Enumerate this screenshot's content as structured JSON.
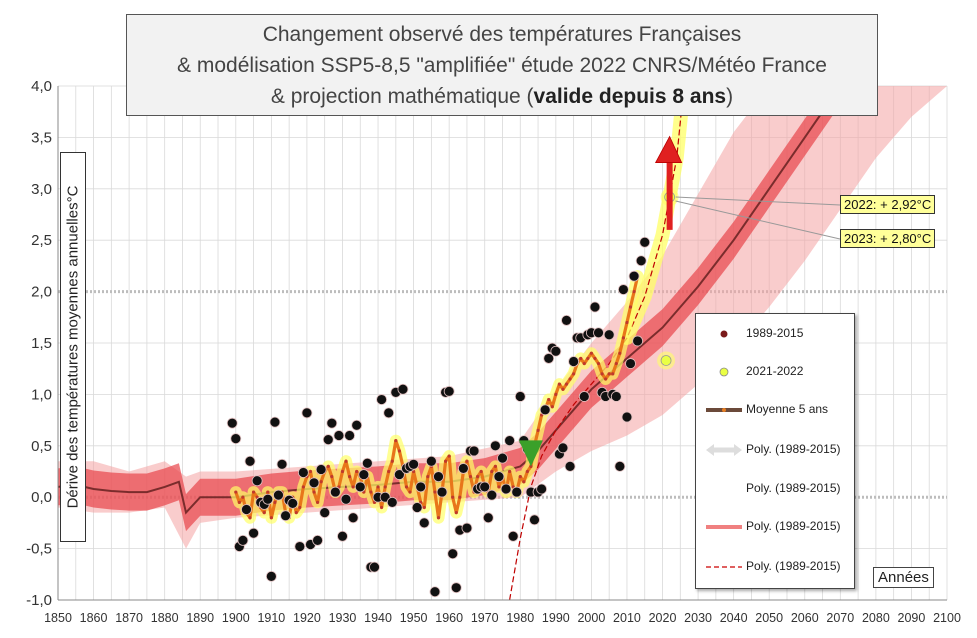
{
  "title": {
    "line1": "Changement observé des températures Françaises",
    "line2": "& modélisation SSP5-8,5 \"amplifiée\" étude 2022 CNRS/Météo France",
    "line3_prefix": "& projection mathématique (",
    "line3_bold": "valide depuis 8 ans",
    "line3_suffix": ")"
  },
  "ylabel": "Dérive des températures moyennes annuelles°C",
  "xlabel": "Années",
  "annotations": {
    "c2022": "2022: + 2,92°C",
    "c2023": "2023: + 2,80°C"
  },
  "legend": {
    "items": [
      {
        "label": "1989-2015",
        "symbol": "dot-darkred"
      },
      {
        "label": "2021-2022",
        "symbol": "dot-yellow"
      },
      {
        "label": "Moyenne 5 ans",
        "symbol": "line-brown-dots"
      },
      {
        "label": "Poly. (1989-2015)",
        "symbol": "arrow-grey"
      },
      {
        "label": "Poly. (1989-2015)",
        "symbol": "none"
      },
      {
        "label": "Poly. (1989-2015)",
        "symbol": "line-salmon"
      },
      {
        "label": "Poly. (1989-2015)",
        "symbol": "line-dashed-red"
      }
    ]
  },
  "colors": {
    "band": "#f4a3a3",
    "band_core": "#e8454a",
    "model_line": "#7a2c2c",
    "highlight": "#ffff66",
    "moving_avg": "#e67e22",
    "dot": "#111111",
    "arrow_red": "#e02020",
    "arrow_green": "#3aa02a",
    "callout_bg": "#ffff99"
  },
  "chart_data": {
    "type": "scatter",
    "x_ticks": [
      "1850",
      "1860",
      "1870",
      "1880",
      "1890",
      "1900",
      "1910",
      "1920",
      "1930",
      "1940",
      "1950",
      "1960",
      "1970",
      "1980",
      "1990",
      "2000",
      "2010",
      "2020",
      "2030",
      "2040",
      "2050",
      "2060",
      "2070",
      "2080",
      "2090",
      "2100"
    ],
    "y_ticks": [
      "4,0",
      "3,5",
      "3,0",
      "2,5",
      "2,0",
      "1,5",
      "1,0",
      "0,5",
      "0,0",
      "-0,5",
      "-1,0"
    ],
    "xlim": [
      1850,
      2100
    ],
    "ylim": [
      -1.0,
      4.0
    ],
    "grid": true,
    "legend_position": "right",
    "observed_points": [
      [
        1899,
        0.72
      ],
      [
        1900,
        0.57
      ],
      [
        1901,
        -0.48
      ],
      [
        1902,
        -0.42
      ],
      [
        1903,
        -0.12
      ],
      [
        1904,
        0.35
      ],
      [
        1905,
        -0.35
      ],
      [
        1906,
        0.16
      ],
      [
        1907,
        -0.05
      ],
      [
        1908,
        -0.07
      ],
      [
        1909,
        -0.02
      ],
      [
        1910,
        -0.77
      ],
      [
        1911,
        0.73
      ],
      [
        1912,
        0.02
      ],
      [
        1913,
        0.32
      ],
      [
        1914,
        -0.18
      ],
      [
        1915,
        -0.03
      ],
      [
        1916,
        -0.06
      ],
      [
        1917,
        -1.02
      ],
      [
        1918,
        -0.48
      ],
      [
        1919,
        0.24
      ],
      [
        1920,
        0.82
      ],
      [
        1921,
        -0.46
      ],
      [
        1922,
        0.14
      ],
      [
        1923,
        -0.42
      ],
      [
        1924,
        0.27
      ],
      [
        1925,
        -0.15
      ],
      [
        1926,
        0.56
      ],
      [
        1927,
        0.72
      ],
      [
        1928,
        0.05
      ],
      [
        1929,
        0.6
      ],
      [
        1930,
        -0.38
      ],
      [
        1931,
        -0.02
      ],
      [
        1932,
        0.6
      ],
      [
        1933,
        -0.2
      ],
      [
        1934,
        0.7
      ],
      [
        1935,
        0.1
      ],
      [
        1936,
        0.22
      ],
      [
        1937,
        0.33
      ],
      [
        1938,
        -0.68
      ],
      [
        1939,
        -0.68
      ],
      [
        1940,
        0.0
      ],
      [
        1941,
        0.95
      ],
      [
        1942,
        0.0
      ],
      [
        1943,
        0.82
      ],
      [
        1944,
        -0.05
      ],
      [
        1945,
        1.02
      ],
      [
        1946,
        0.22
      ],
      [
        1947,
        1.05
      ],
      [
        1948,
        0.28
      ],
      [
        1949,
        0.3
      ],
      [
        1950,
        0.32
      ],
      [
        1951,
        -0.1
      ],
      [
        1952,
        0.1
      ],
      [
        1953,
        -0.25
      ],
      [
        1954,
        -1.02
      ],
      [
        1955,
        0.35
      ],
      [
        1956,
        -0.92
      ],
      [
        1957,
        0.2
      ],
      [
        1958,
        0.05
      ],
      [
        1959,
        1.02
      ],
      [
        1960,
        1.03
      ],
      [
        1961,
        -0.55
      ],
      [
        1962,
        -0.88
      ],
      [
        1963,
        -0.32
      ],
      [
        1964,
        0.28
      ],
      [
        1965,
        -0.3
      ],
      [
        1966,
        0.45
      ],
      [
        1967,
        0.45
      ],
      [
        1968,
        0.08
      ],
      [
        1969,
        0.1
      ],
      [
        1970,
        0.1
      ],
      [
        1971,
        -0.2
      ],
      [
        1972,
        0.02
      ],
      [
        1973,
        0.5
      ],
      [
        1974,
        0.2
      ],
      [
        1975,
        0.38
      ],
      [
        1976,
        0.08
      ],
      [
        1977,
        0.55
      ],
      [
        1978,
        -0.38
      ],
      [
        1979,
        0.05
      ],
      [
        1980,
        0.98
      ],
      [
        1981,
        0.55
      ],
      [
        1982,
        0.47
      ],
      [
        1983,
        0.05
      ],
      [
        1984,
        -0.22
      ],
      [
        1985,
        0.05
      ],
      [
        1986,
        0.08
      ],
      [
        1987,
        0.85
      ],
      [
        1988,
        1.35
      ],
      [
        1989,
        1.45
      ],
      [
        1990,
        1.42
      ],
      [
        1991,
        0.42
      ],
      [
        1992,
        0.48
      ],
      [
        1993,
        1.72
      ],
      [
        1994,
        0.3
      ],
      [
        1995,
        1.32
      ],
      [
        1996,
        1.55
      ],
      [
        1997,
        1.55
      ],
      [
        1998,
        0.98
      ],
      [
        1999,
        1.58
      ],
      [
        2000,
        1.6
      ],
      [
        2001,
        1.85
      ],
      [
        2002,
        1.6
      ],
      [
        2003,
        1.02
      ],
      [
        2004,
        0.98
      ],
      [
        2005,
        1.58
      ],
      [
        2006,
        1.0
      ],
      [
        2007,
        0.98
      ],
      [
        2008,
        0.3
      ],
      [
        2009,
        2.02
      ],
      [
        2010,
        0.78
      ],
      [
        2011,
        1.3
      ],
      [
        2012,
        2.15
      ],
      [
        2013,
        1.52
      ],
      [
        2014,
        2.3
      ],
      [
        2015,
        2.48
      ]
    ],
    "points_2021_2022": [
      [
        2021,
        1.33
      ],
      [
        2022,
        2.92
      ]
    ],
    "moving_average_5y": [
      [
        1900,
        0.05
      ],
      [
        1901,
        -0.05
      ],
      [
        1902,
        0.0
      ],
      [
        1903,
        -0.15
      ],
      [
        1904,
        -0.2
      ],
      [
        1905,
        0.05
      ],
      [
        1906,
        0.0
      ],
      [
        1907,
        -0.1
      ],
      [
        1908,
        -0.15
      ],
      [
        1909,
        0.05
      ],
      [
        1910,
        -0.2
      ],
      [
        1911,
        -0.05
      ],
      [
        1912,
        0.05
      ],
      [
        1913,
        0.05
      ],
      [
        1914,
        -0.15
      ],
      [
        1915,
        -0.2
      ],
      [
        1916,
        0.0
      ],
      [
        1917,
        -0.15
      ],
      [
        1918,
        -0.1
      ],
      [
        1919,
        0.1
      ],
      [
        1920,
        0.2
      ],
      [
        1921,
        0.25
      ],
      [
        1922,
        0.05
      ],
      [
        1923,
        -0.05
      ],
      [
        1924,
        0.15
      ],
      [
        1925,
        0.25
      ],
      [
        1926,
        0.3
      ],
      [
        1927,
        0.2
      ],
      [
        1928,
        0.05
      ],
      [
        1929,
        0.1
      ],
      [
        1930,
        0.25
      ],
      [
        1931,
        0.35
      ],
      [
        1932,
        0.2
      ],
      [
        1933,
        0.1
      ],
      [
        1934,
        0.25
      ],
      [
        1935,
        0.2
      ],
      [
        1936,
        0.05
      ],
      [
        1937,
        0.2
      ],
      [
        1938,
        0.05
      ],
      [
        1939,
        -0.05
      ],
      [
        1940,
        0.1
      ],
      [
        1941,
        -0.1
      ],
      [
        1942,
        0.1
      ],
      [
        1943,
        0.25
      ],
      [
        1944,
        0.35
      ],
      [
        1945,
        0.55
      ],
      [
        1946,
        0.45
      ],
      [
        1947,
        0.3
      ],
      [
        1948,
        0.1
      ],
      [
        1949,
        0.05
      ],
      [
        1950,
        0.25
      ],
      [
        1951,
        0.1
      ],
      [
        1952,
        -0.05
      ],
      [
        1953,
        -0.1
      ],
      [
        1954,
        0.2
      ],
      [
        1955,
        0.3
      ],
      [
        1956,
        0.05
      ],
      [
        1957,
        -0.2
      ],
      [
        1958,
        0.05
      ],
      [
        1959,
        0.35
      ],
      [
        1960,
        0.4
      ],
      [
        1961,
        0.0
      ],
      [
        1962,
        -0.15
      ],
      [
        1963,
        0.0
      ],
      [
        1964,
        0.25
      ],
      [
        1965,
        0.35
      ],
      [
        1966,
        0.2
      ],
      [
        1967,
        0.05
      ],
      [
        1968,
        0.2
      ],
      [
        1969,
        0.25
      ],
      [
        1970,
        0.1
      ],
      [
        1971,
        0.05
      ],
      [
        1972,
        0.25
      ],
      [
        1973,
        0.3
      ],
      [
        1974,
        0.1
      ],
      [
        1975,
        0.2
      ],
      [
        1976,
        0.05
      ],
      [
        1977,
        0.25
      ],
      [
        1978,
        0.1
      ],
      [
        1979,
        0.05
      ],
      [
        1980,
        0.2
      ],
      [
        1981,
        0.15
      ],
      [
        1982,
        0.25
      ],
      [
        1983,
        0.3
      ],
      [
        1984,
        0.5
      ],
      [
        1985,
        0.65
      ],
      [
        1986,
        0.8
      ],
      [
        1987,
        0.85
      ],
      [
        1988,
        0.95
      ],
      [
        1989,
        0.88
      ],
      [
        1990,
        1.0
      ],
      [
        1991,
        1.1
      ],
      [
        1992,
        1.05
      ],
      [
        1993,
        1.1
      ],
      [
        1994,
        1.15
      ],
      [
        1995,
        1.2
      ],
      [
        1996,
        1.3
      ],
      [
        1997,
        1.35
      ],
      [
        1998,
        1.3
      ],
      [
        1999,
        1.35
      ],
      [
        2000,
        1.4
      ],
      [
        2001,
        1.35
      ],
      [
        2002,
        1.3
      ],
      [
        2003,
        1.2
      ],
      [
        2004,
        1.15
      ],
      [
        2005,
        1.2
      ],
      [
        2006,
        1.2
      ],
      [
        2007,
        1.3
      ],
      [
        2008,
        1.4
      ],
      [
        2009,
        1.55
      ],
      [
        2010,
        1.7
      ],
      [
        2011,
        1.85
      ],
      [
        2012,
        2.0
      ],
      [
        2013,
        2.15
      ]
    ],
    "model_median": [
      [
        1850,
        0.1
      ],
      [
        1855,
        0.12
      ],
      [
        1860,
        0.08
      ],
      [
        1865,
        0.06
      ],
      [
        1870,
        0.05
      ],
      [
        1875,
        0.05
      ],
      [
        1880,
        0.1
      ],
      [
        1884,
        0.15
      ],
      [
        1886,
        -0.15
      ],
      [
        1890,
        0.0
      ],
      [
        1900,
        0.0
      ],
      [
        1910,
        0.05
      ],
      [
        1920,
        0.08
      ],
      [
        1930,
        0.1
      ],
      [
        1940,
        0.12
      ],
      [
        1950,
        0.15
      ],
      [
        1960,
        0.15
      ],
      [
        1970,
        0.2
      ],
      [
        1980,
        0.3
      ],
      [
        1985,
        0.45
      ],
      [
        1990,
        0.65
      ],
      [
        1995,
        0.85
      ],
      [
        2000,
        1.05
      ],
      [
        2005,
        1.2
      ],
      [
        2010,
        1.35
      ],
      [
        2015,
        1.5
      ],
      [
        2020,
        1.65
      ],
      [
        2030,
        2.05
      ],
      [
        2040,
        2.5
      ],
      [
        2050,
        3.0
      ],
      [
        2060,
        3.5
      ],
      [
        2070,
        4.0
      ]
    ],
    "model_band_lower": [
      [
        1850,
        -0.1
      ],
      [
        1860,
        -0.15
      ],
      [
        1870,
        -0.15
      ],
      [
        1880,
        -0.1
      ],
      [
        1886,
        -0.5
      ],
      [
        1890,
        -0.25
      ],
      [
        1900,
        -0.2
      ],
      [
        1920,
        -0.15
      ],
      [
        1940,
        -0.1
      ],
      [
        1960,
        -0.05
      ],
      [
        1980,
        0.0
      ],
      [
        1990,
        0.25
      ],
      [
        2000,
        0.45
      ],
      [
        2010,
        0.6
      ],
      [
        2020,
        0.8
      ],
      [
        2030,
        1.1
      ],
      [
        2040,
        1.45
      ],
      [
        2050,
        1.85
      ],
      [
        2060,
        2.3
      ],
      [
        2070,
        2.8
      ],
      [
        2080,
        3.3
      ],
      [
        2090,
        3.7
      ],
      [
        2100,
        4.0
      ]
    ],
    "model_band_upper": [
      [
        1850,
        0.35
      ],
      [
        1860,
        0.35
      ],
      [
        1870,
        0.25
      ],
      [
        1880,
        0.35
      ],
      [
        1886,
        0.2
      ],
      [
        1890,
        0.25
      ],
      [
        1900,
        0.25
      ],
      [
        1920,
        0.3
      ],
      [
        1940,
        0.35
      ],
      [
        1960,
        0.4
      ],
      [
        1980,
        0.55
      ],
      [
        1990,
        1.05
      ],
      [
        2000,
        1.5
      ],
      [
        2010,
        1.9
      ],
      [
        2020,
        2.35
      ],
      [
        2030,
        2.95
      ],
      [
        2040,
        3.55
      ],
      [
        2050,
        4.0
      ]
    ],
    "poly_projection": [
      [
        1977,
        -1.0
      ],
      [
        1980,
        -0.4
      ],
      [
        1983,
        0.1
      ],
      [
        1986,
        0.4
      ],
      [
        1990,
        0.65
      ],
      [
        1995,
        0.9
      ],
      [
        2000,
        1.1
      ],
      [
        2005,
        1.3
      ],
      [
        2010,
        1.55
      ],
      [
        2015,
        1.95
      ],
      [
        2020,
        2.55
      ],
      [
        2024,
        3.3
      ],
      [
        2026,
        4.0
      ]
    ]
  }
}
